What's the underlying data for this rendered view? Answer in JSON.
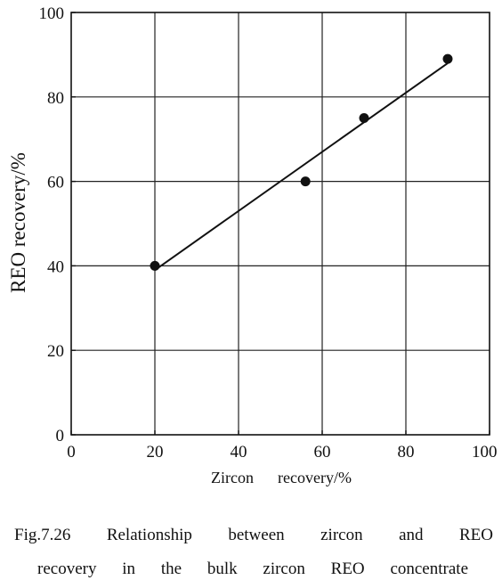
{
  "chart_data": {
    "type": "scatter",
    "xlabel": "Zircon      recovery/%",
    "ylabel": "REO recovery/%",
    "xlim": [
      0,
      100
    ],
    "ylim": [
      0,
      100
    ],
    "x_ticks": [
      "0",
      "20",
      "40",
      "60",
      "80",
      "100"
    ],
    "y_ticks": [
      "0",
      "20",
      "40",
      "60",
      "80",
      "100"
    ],
    "grid": true,
    "series": [
      {
        "points": [
          {
            "x": 20,
            "y": 40
          },
          {
            "x": 56,
            "y": 60
          },
          {
            "x": 70,
            "y": 75
          },
          {
            "x": 90,
            "y": 89
          }
        ]
      }
    ],
    "fit_line": {
      "from": {
        "x": 20,
        "y": 39
      },
      "to": {
        "x": 90,
        "y": 88
      }
    },
    "colors": {
      "marker": "#111111",
      "line": "#111111",
      "grid": "#222222"
    }
  },
  "caption": {
    "line1": "Fig.7.26 Relationship between zircon and REO",
    "line2": "recovery in the bulk zircon REO concentrate"
  }
}
